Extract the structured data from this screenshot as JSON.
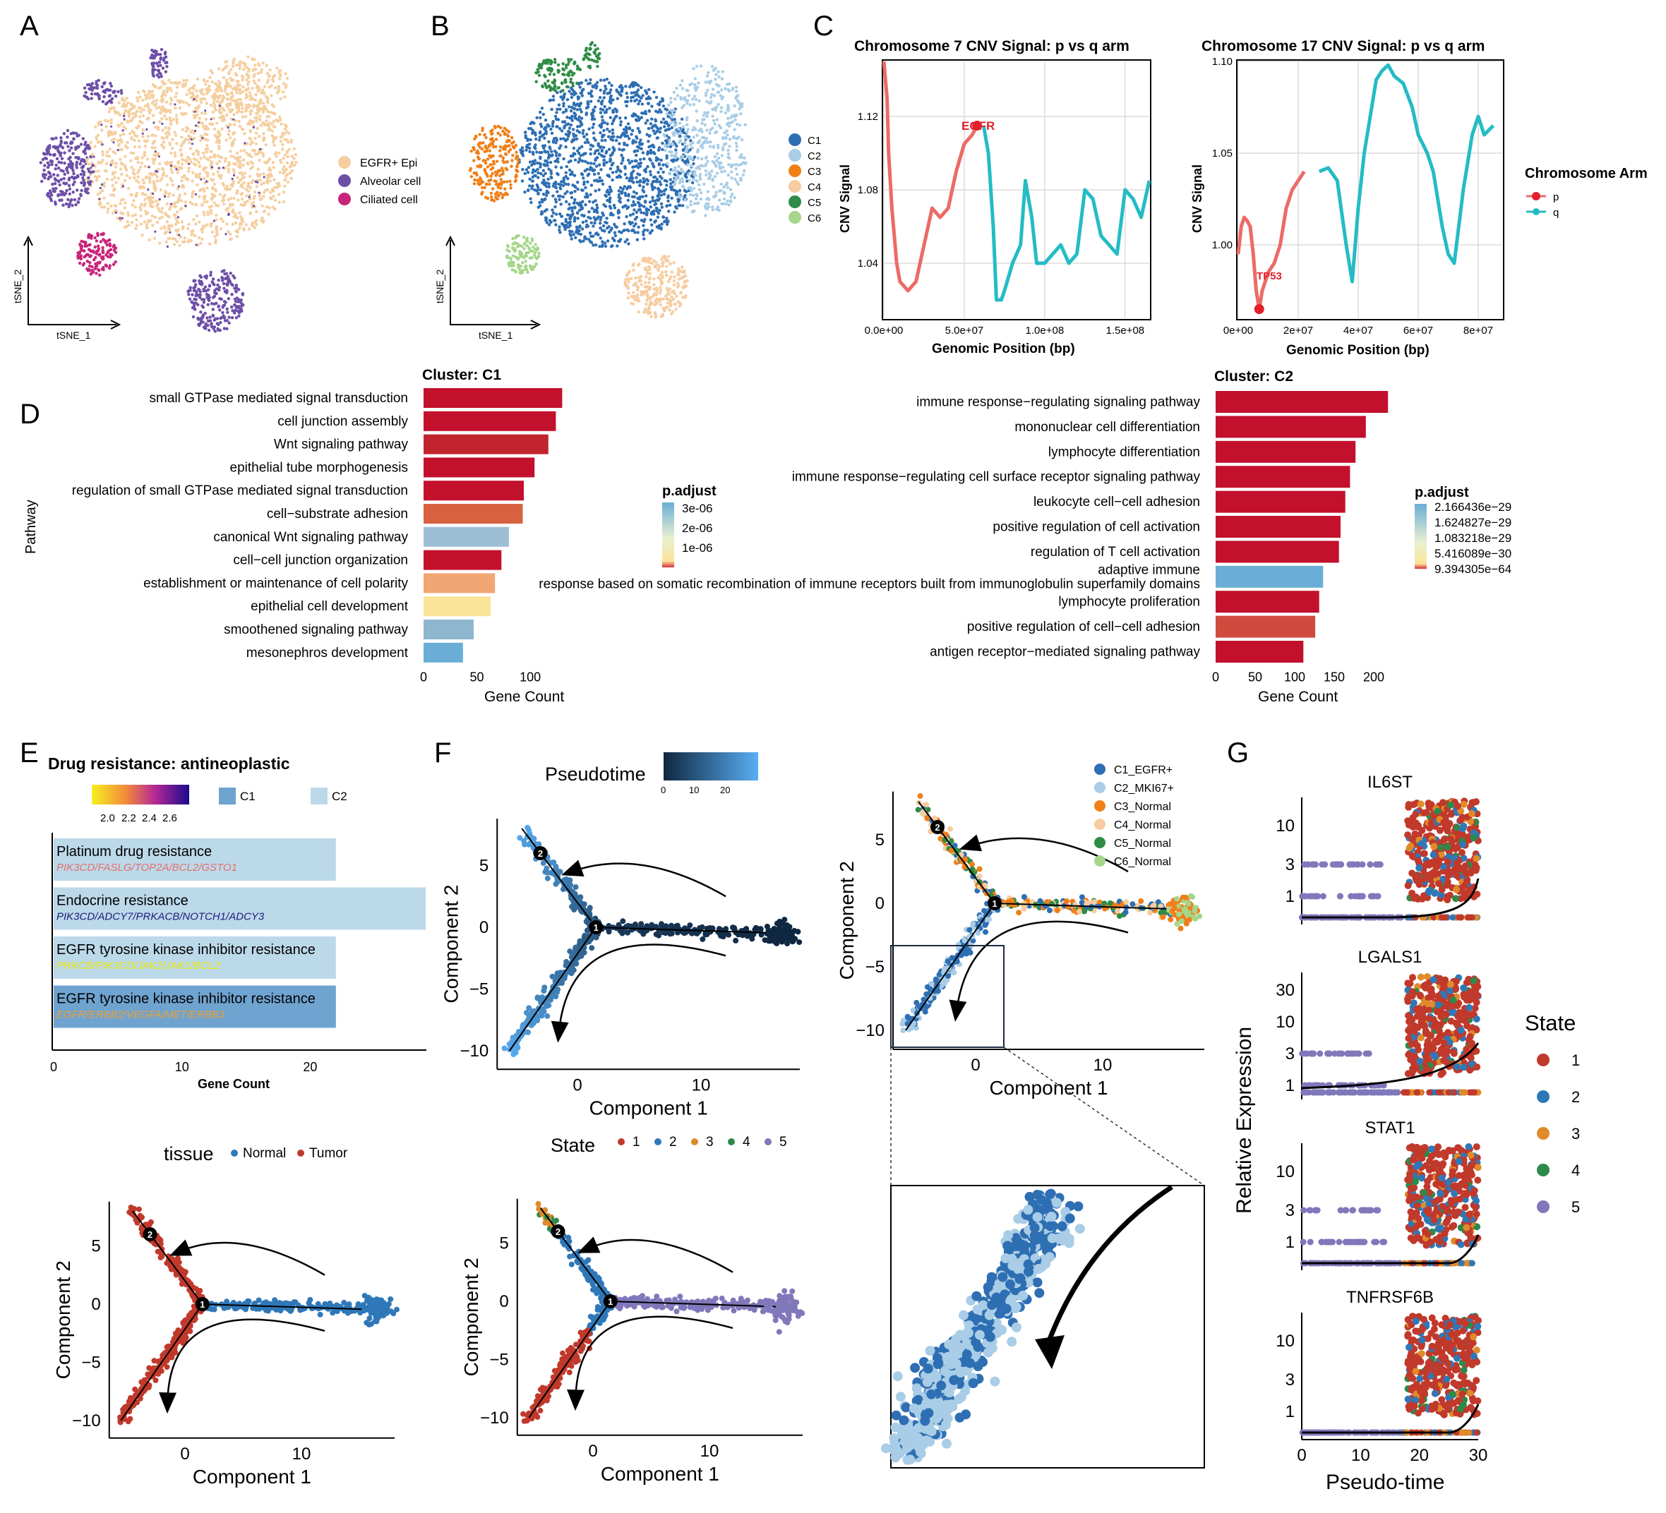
{
  "figure": {
    "panel_letters": [
      "A",
      "B",
      "C",
      "D",
      "E",
      "F",
      "G"
    ]
  },
  "colors": {
    "egfr_epi": "#f5cfa0",
    "alveolar": "#6d4fa8",
    "ciliated": "#c8247a",
    "c1": "#2e6fb3",
    "c2": "#a9cde6",
    "c3": "#f07f18",
    "c4": "#f6ccA0",
    "c5": "#2e8c46",
    "c6": "#a5d68a",
    "p_arm": "#eb6b66",
    "q_arm": "#24bcc4",
    "bar_red": "#c2102d",
    "bar_blue": "#6aaed6",
    "state1": "#c0392b",
    "state2": "#2f78b8",
    "state3": "#e08a2a",
    "state4": "#2c8a4a",
    "state5": "#8078bb",
    "normal": "#2f78b8",
    "tumor": "#c0392b"
  },
  "chart_data": [
    {
      "id": "A",
      "type": "scatter",
      "title": "",
      "xlabel": "tSNE_1",
      "ylabel": "tSNE_2",
      "legend": [
        "EGFR+ Epi",
        "Alveolar cell",
        "Ciliated cell"
      ]
    },
    {
      "id": "B",
      "type": "scatter",
      "title": "",
      "xlabel": "tSNE_1",
      "ylabel": "tSNE_2",
      "legend": [
        "C1",
        "C2",
        "C3",
        "C4",
        "C5",
        "C6"
      ]
    },
    {
      "id": "C1",
      "type": "line",
      "title": "Chromosome 7 CNV Signal: p vs q arm",
      "xlabel": "Genomic Position (bp)",
      "ylabel": "CNV Signal",
      "xticks": [
        "0.0e+00",
        "5.0e+07",
        "1.0e+08",
        "1.5e+08"
      ],
      "yticks": [
        "1.04",
        "1.08",
        "1.12"
      ],
      "annotation": "EGFR",
      "series": [
        {
          "name": "p",
          "x": [
            0,
            2,
            3,
            5,
            8,
            10,
            15,
            20,
            25,
            30,
            35,
            40,
            45,
            50,
            55,
            58
          ],
          "y": [
            1.15,
            1.13,
            1.1,
            1.07,
            1.04,
            1.03,
            1.025,
            1.03,
            1.05,
            1.07,
            1.065,
            1.07,
            1.09,
            1.105,
            1.11,
            1.115
          ]
        },
        {
          "name": "q",
          "x": [
            62,
            65,
            68,
            70,
            73,
            75,
            80,
            85,
            88,
            92,
            95,
            100,
            105,
            110,
            115,
            120,
            125,
            130,
            135,
            140,
            145,
            150,
            155,
            160,
            165
          ],
          "y": [
            1.115,
            1.1,
            1.06,
            1.02,
            1.02,
            1.025,
            1.04,
            1.05,
            1.085,
            1.065,
            1.04,
            1.04,
            1.045,
            1.05,
            1.04,
            1.045,
            1.08,
            1.075,
            1.055,
            1.05,
            1.045,
            1.08,
            1.075,
            1.065,
            1.085
          ]
        }
      ],
      "xlim": [
        0,
        165000000
      ],
      "ylim": [
        1.01,
        1.15
      ]
    },
    {
      "id": "C2",
      "type": "line",
      "title": "Chromosome 17 CNV Signal: p vs q arm",
      "xlabel": "Genomic Position (bp)",
      "ylabel": "CNV Signal",
      "xticks": [
        "0e+00",
        "2e+07",
        "4e+07",
        "6e+07",
        "8e+07"
      ],
      "yticks": [
        "1.00",
        "1.05",
        "1.10"
      ],
      "annotation": "TP53",
      "legend_title": "Chromosome Arm",
      "legend": [
        "p",
        "q"
      ],
      "series": [
        {
          "name": "p",
          "x": [
            0,
            1,
            2,
            3,
            4,
            5,
            6,
            7,
            8,
            10,
            12,
            14,
            16,
            18,
            20,
            22
          ],
          "y": [
            0.995,
            1.01,
            1.015,
            1.013,
            1.01,
            0.995,
            0.975,
            0.965,
            0.975,
            0.985,
            0.99,
            1.0,
            1.02,
            1.03,
            1.035,
            1.04
          ]
        },
        {
          "name": "q",
          "x": [
            27,
            30,
            33,
            36,
            38,
            40,
            42,
            44,
            46,
            48,
            50,
            52,
            55,
            58,
            60,
            63,
            65,
            68,
            70,
            72,
            75,
            78,
            80,
            82,
            85
          ],
          "y": [
            1.04,
            1.042,
            1.035,
            1.0,
            0.98,
            1.02,
            1.05,
            1.07,
            1.09,
            1.095,
            1.098,
            1.092,
            1.088,
            1.075,
            1.06,
            1.05,
            1.04,
            1.01,
            0.995,
            0.99,
            1.03,
            1.06,
            1.07,
            1.06,
            1.065
          ]
        }
      ],
      "xlim": [
        0,
        88000000
      ],
      "ylim": [
        0.96,
        1.1
      ]
    },
    {
      "id": "D1",
      "type": "bar",
      "title": "Cluster: C1",
      "xlabel": "Gene Count",
      "ylabel": "Pathway",
      "legend_title": "p.adjust",
      "legend_ticks": [
        "3e-06",
        "2e-06",
        "1e-06"
      ],
      "xticks": [
        "0",
        "50",
        "100"
      ],
      "categories": [
        "small GTPase mediated signal transduction",
        "cell junction assembly",
        "Wnt signaling pathway",
        "epithelial tube morphogenesis",
        "regulation of small GTPase mediated signal transduction",
        "cell−substrate adhesion",
        "canonical Wnt signaling pathway",
        "cell−cell junction organization",
        "establishment or maintenance of cell polarity",
        "epithelial cell development",
        "smoothened signaling pathway",
        "mesonephros development"
      ],
      "values": [
        130,
        124,
        117,
        104,
        94,
        93,
        80,
        73,
        67,
        63,
        47,
        37
      ],
      "colors": [
        "#c2102d",
        "#c2102d",
        "#c1242f",
        "#c2102d",
        "#c2102d",
        "#d8613f",
        "#9dbfd6",
        "#c2102d",
        "#f2a673",
        "#f9e49a",
        "#8fb6cf",
        "#6aaed6"
      ],
      "xlim": [
        0,
        135
      ]
    },
    {
      "id": "D2",
      "type": "bar",
      "title": "Cluster: C2",
      "xlabel": "Gene Count",
      "legend_title": "p.adjust",
      "legend_ticks": [
        "2.166436e−29",
        "1.624827e−29",
        "1.083218e−29",
        "5.416089e−30",
        "9.394305e−64"
      ],
      "xticks": [
        "0",
        "50",
        "100",
        "150",
        "200"
      ],
      "categories": [
        "immune response−regulating signaling pathway",
        "mononuclear cell differentiation",
        "lymphocyte differentiation",
        "immune response−regulating cell surface receptor signaling pathway",
        "leukocyte cell−cell adhesion",
        "positive regulation of cell activation",
        "regulation of T cell activation",
        "adaptive immune response based on somatic recombination of immune receptors built from immunoglobulin superfamily domains",
        "lymphocyte proliferation",
        "positive regulation of cell−cell adhesion",
        "antigen receptor−mediated signaling pathway"
      ],
      "values": [
        218,
        190,
        177,
        170,
        164,
        158,
        156,
        136,
        131,
        126,
        111
      ],
      "colors": [
        "#c2102d",
        "#c2102d",
        "#c2102d",
        "#c2102d",
        "#c2102d",
        "#c2102d",
        "#c2102d",
        "#6aaed6",
        "#c2102d",
        "#d04a3e",
        "#c2102d"
      ],
      "xlim": [
        0,
        225
      ]
    },
    {
      "id": "E",
      "type": "bar",
      "title": "Drug resistance: antineoplastic",
      "xlabel": "Gene Count",
      "xticks": [
        "0",
        "10",
        "20"
      ],
      "color_scale_ticks": [
        "2.0",
        "2.2",
        "2.4",
        "2.6"
      ],
      "legend": [
        "C1",
        "C2"
      ],
      "categories": [
        "Platinum drug resistance",
        "Endocrine resistance",
        "EGFR tyrosine kinase inhibitor resistance",
        "EGFR tyrosine kinase inhibitor resistance"
      ],
      "genes": [
        "PIK3CD/FASLG/TOP2A/BCL2/GSTO1",
        "PIK3CD/ADCY7/PRKACB/NOTCH1/ADCY3",
        "PRKCB/PIK3CD/JAK2/JAK1/BCL2",
        "EGFR/ERBB2/VEGFA/MET/ERBB3"
      ],
      "gene_colors": [
        "#e4706b",
        "#1d1d7a",
        "#e8e600",
        "#f0a030"
      ],
      "values": [
        22,
        29,
        22,
        22
      ],
      "bar_colors": [
        "#bcd9ea",
        "#bcd9ea",
        "#bcd9ea",
        "#6fa3d0"
      ],
      "xlim": [
        0,
        29
      ]
    },
    {
      "id": "F",
      "type": "scatter",
      "subplots": [
        {
          "name": "pseudotime",
          "legend_title": "Pseudotime",
          "legend_ticks": [
            "0",
            "10",
            "20"
          ],
          "xlabel": "Component 1",
          "ylabel": "Component 2",
          "xticks": [
            "0",
            "10"
          ],
          "yticks": [
            "5",
            "0",
            "−5",
            "−10"
          ]
        },
        {
          "name": "cluster",
          "legend": [
            "C1_EGFR+",
            "C2_MKI67+",
            "C3_Normal",
            "C4_Normal",
            "C5_Normal",
            "C6_Normal"
          ],
          "xlabel": "Component 1",
          "ylabel": "Component 2",
          "xticks": [
            "0",
            "10"
          ],
          "yticks": [
            "5",
            "0",
            "−5",
            "−10"
          ]
        },
        {
          "name": "tissue",
          "legend_title": "tissue",
          "legend": [
            "Normal",
            "Tumor"
          ],
          "xlabel": "Component 1",
          "ylabel": "Component 2",
          "xticks": [
            "0",
            "10"
          ],
          "yticks": [
            "5",
            "0",
            "−5",
            "−10"
          ]
        },
        {
          "name": "state",
          "legend_title": "State",
          "legend": [
            "1",
            "2",
            "3",
            "4",
            "5"
          ],
          "xlabel": "Component 1",
          "ylabel": "Component 2",
          "xticks": [
            "0",
            "10"
          ],
          "yticks": [
            "5",
            "0",
            "−5",
            "−10"
          ]
        }
      ],
      "branch_points": [
        "1",
        "2"
      ]
    },
    {
      "id": "G",
      "type": "scatter",
      "xlabel": "Pseudo-time",
      "ylabel": "Relative Expression",
      "xticks": [
        "0",
        "10",
        "20",
        "30"
      ],
      "legend_title": "State",
      "legend": [
        "1",
        "2",
        "3",
        "4",
        "5"
      ],
      "genes": [
        {
          "name": "IL6ST",
          "yticks": [
            "10",
            "3",
            "1"
          ]
        },
        {
          "name": "LGALS1",
          "yticks": [
            "30",
            "10",
            "3",
            "1"
          ]
        },
        {
          "name": "STAT1",
          "yticks": [
            "10",
            "3",
            "1"
          ]
        },
        {
          "name": "TNFRSF6B",
          "yticks": [
            "10",
            "3",
            "1"
          ]
        }
      ]
    }
  ]
}
